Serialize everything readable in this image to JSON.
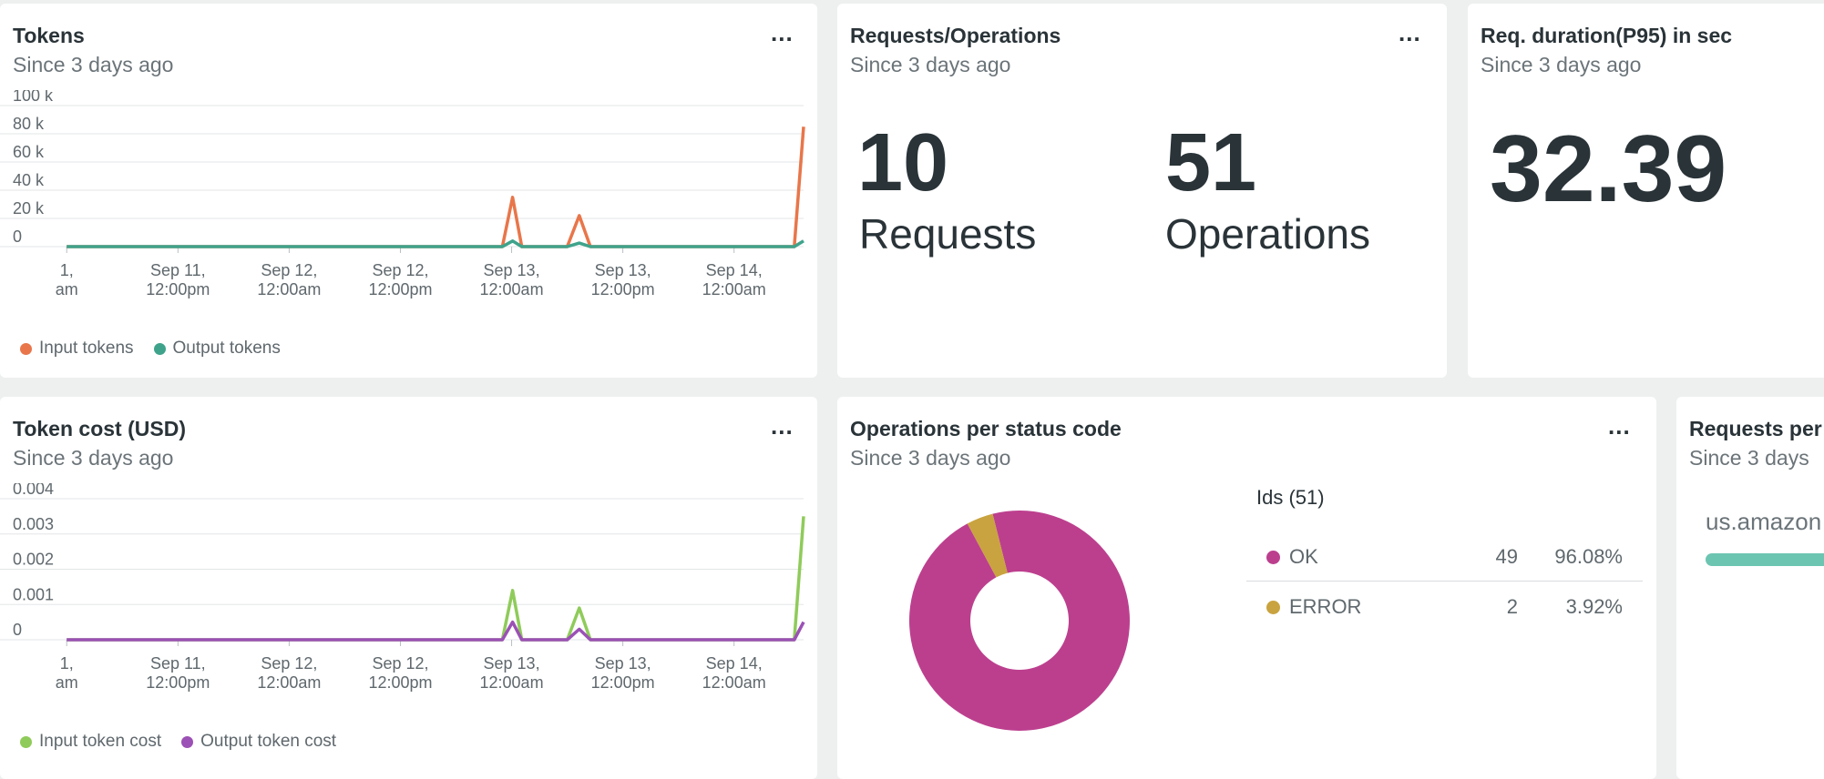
{
  "menu_label": "...",
  "tokens_card": {
    "title": "Tokens",
    "subtitle": "Since 3 days ago",
    "legend": [
      {
        "label": "Input tokens",
        "color": "#e8764a"
      },
      {
        "label": "Output tokens",
        "color": "#3fa38b"
      }
    ]
  },
  "requests_card": {
    "title": "Requests/Operations",
    "subtitle": "Since 3 days ago",
    "requests_value": "10",
    "requests_label": "Requests",
    "operations_value": "51",
    "operations_label": "Operations"
  },
  "duration_card": {
    "title": "Req. duration(P95) in sec",
    "subtitle": "Since 3 days ago",
    "value": "32.39"
  },
  "cost_card": {
    "title": "Token cost (USD)",
    "subtitle": "Since 3 days ago",
    "legend": [
      {
        "label": "Input token cost",
        "color": "#8fcb5a"
      },
      {
        "label": "Output token cost",
        "color": "#9b51b5"
      }
    ]
  },
  "status_card": {
    "title": "Operations per status code",
    "subtitle": "Since 3 days ago",
    "table_header": "Ids (51)",
    "rows": [
      {
        "name": "OK",
        "count": "49",
        "pct": "96.08%",
        "color": "#bc3f8e"
      },
      {
        "name": "ERROR",
        "count": "2",
        "pct": "3.92%",
        "color": "#c9a33f"
      }
    ]
  },
  "requests_per_card": {
    "title": "Requests per",
    "subtitle": "Since 3 days",
    "item_label": "us.amazon",
    "bar_color": "#6cc5b1"
  },
  "chart_data": [
    {
      "type": "line",
      "title": "Tokens",
      "y_ticks": [
        "100 k",
        "80 k",
        "60 k",
        "40 k",
        "20 k",
        "0"
      ],
      "ylim": [
        0,
        100000
      ],
      "x_ticks": [
        [
          "1,",
          "am"
        ],
        [
          "Sep 11,",
          "12:00pm"
        ],
        [
          "Sep 12,",
          "12:00am"
        ],
        [
          "Sep 12,",
          "12:00pm"
        ],
        [
          "Sep 13,",
          "12:00am"
        ],
        [
          "Sep 13,",
          "12:00pm"
        ],
        [
          "Sep 14,",
          "12:00am"
        ]
      ],
      "x_tick_times": [
        0,
        12,
        24,
        36,
        48,
        60,
        72
      ],
      "x_range": [
        -7.2,
        79.5
      ],
      "grid": true,
      "legend_position": "bottom-left",
      "series": [
        {
          "name": "Input tokens",
          "color": "#e8764a",
          "points": [
            [
              0,
              0
            ],
            [
              46,
              0
            ],
            [
              47,
              0
            ],
            [
              48.1,
              35000
            ],
            [
              49.1,
              0
            ],
            [
              53,
              0
            ],
            [
              54,
              0
            ],
            [
              55.3,
              22000
            ],
            [
              56.5,
              0
            ],
            [
              77.5,
              0
            ],
            [
              78.5,
              0
            ],
            [
              79.5,
              85000
            ]
          ]
        },
        {
          "name": "Output tokens",
          "color": "#3fa38b",
          "points": [
            [
              0,
              0
            ],
            [
              47,
              0
            ],
            [
              48.1,
              4000
            ],
            [
              49.1,
              0
            ],
            [
              54,
              0
            ],
            [
              55.3,
              2500
            ],
            [
              56.5,
              0
            ],
            [
              78.5,
              0
            ],
            [
              79.5,
              4000
            ]
          ]
        }
      ]
    },
    {
      "type": "line",
      "title": "Token cost (USD)",
      "y_ticks": [
        "0.004",
        "0.003",
        "0.002",
        "0.001",
        "0"
      ],
      "ylim": [
        0,
        0.004
      ],
      "x_ticks": [
        [
          "1,",
          "am"
        ],
        [
          "Sep 11,",
          "12:00pm"
        ],
        [
          "Sep 12,",
          "12:00am"
        ],
        [
          "Sep 12,",
          "12:00pm"
        ],
        [
          "Sep 13,",
          "12:00am"
        ],
        [
          "Sep 13,",
          "12:00pm"
        ],
        [
          "Sep 14,",
          "12:00am"
        ]
      ],
      "x_tick_times": [
        0,
        12,
        24,
        36,
        48,
        60,
        72
      ],
      "x_range": [
        -7.2,
        79.5
      ],
      "grid": true,
      "legend_position": "bottom-left",
      "series": [
        {
          "name": "Input token cost",
          "color": "#8fcb5a",
          "points": [
            [
              0,
              0
            ],
            [
              46,
              0
            ],
            [
              47,
              0
            ],
            [
              48.1,
              0.0014
            ],
            [
              49.1,
              0
            ],
            [
              53,
              0
            ],
            [
              54,
              0
            ],
            [
              55.3,
              0.0009
            ],
            [
              56.5,
              0
            ],
            [
              77.5,
              0
            ],
            [
              78.5,
              0
            ],
            [
              79.5,
              0.0035
            ]
          ]
        },
        {
          "name": "Output token cost",
          "color": "#9b51b5",
          "points": [
            [
              0,
              0
            ],
            [
              47,
              0
            ],
            [
              48.1,
              0.0005
            ],
            [
              49.1,
              0
            ],
            [
              54,
              0
            ],
            [
              55.3,
              0.0003
            ],
            [
              56.5,
              0
            ],
            [
              78.5,
              0
            ],
            [
              79.5,
              0.0005
            ]
          ]
        }
      ]
    },
    {
      "type": "pie",
      "donut": true,
      "title": "Operations per status code",
      "slices": [
        {
          "label": "OK",
          "value": 49,
          "color": "#bc3f8e"
        },
        {
          "label": "ERROR",
          "value": 2,
          "color": "#c9a33f"
        }
      ]
    }
  ]
}
